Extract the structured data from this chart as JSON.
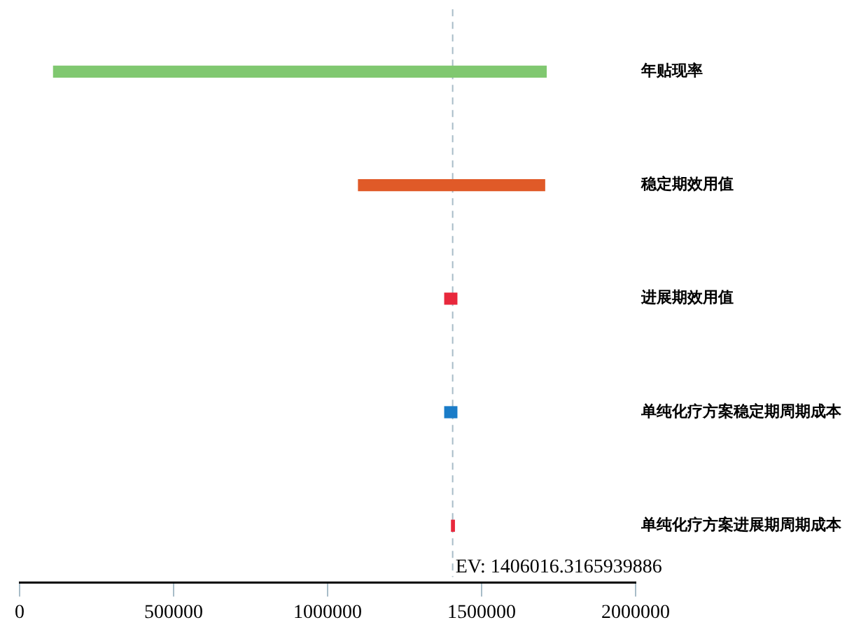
{
  "chart_data": {
    "type": "bar",
    "orientation": "horizontal",
    "categories": [
      "年贴现率",
      "稳定期效用值",
      "进展期效用值",
      "单纯化疗方案稳定期周期成本",
      "单纯化疗方案进展期周期成本"
    ],
    "base": [
      110000,
      1100000,
      1380000,
      1380000,
      1402000
    ],
    "values": [
      1600000,
      605000,
      40000,
      40000,
      10000
    ],
    "colors": [
      "#80c870",
      "#e05a28",
      "#e8283c",
      "#1a7cc8",
      "#e8283c"
    ],
    "xlim": [
      0,
      2000000
    ],
    "xticks": [
      0,
      500000,
      1000000,
      1500000,
      2000000
    ],
    "ref_lines": [
      {
        "axis": "x",
        "value": 1406016.3165939886,
        "label": "EV: 1406016.3165939886",
        "line_style": "dashed",
        "color": "#a8bcc8"
      }
    ],
    "legend": false,
    "grid": false
  }
}
